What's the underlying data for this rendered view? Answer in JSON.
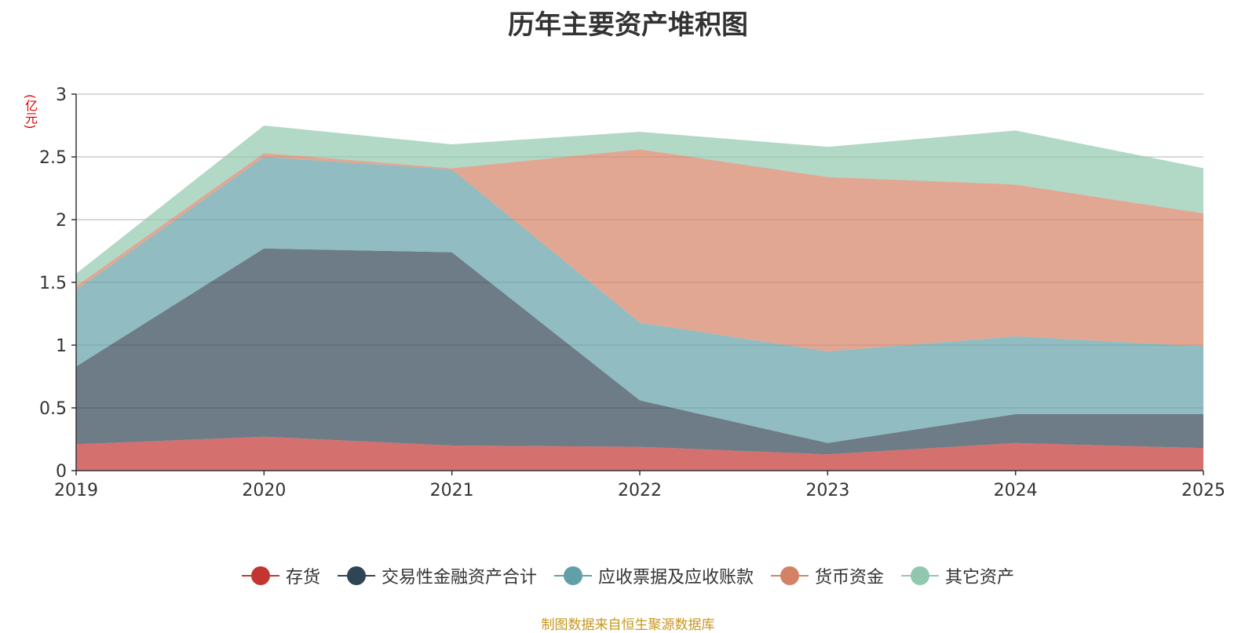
{
  "chart_data": {
    "type": "area",
    "stacked": true,
    "title": "历年主要资产堆积图",
    "ylabel": "(亿元)",
    "xlabel": "",
    "categories": [
      "2019",
      "2020",
      "2021",
      "2022",
      "2023",
      "2024",
      "2025"
    ],
    "ylim": [
      0,
      3
    ],
    "yticks": [
      0,
      0.5,
      1,
      1.5,
      2,
      2.5,
      3
    ],
    "grid": true,
    "legend_position": "bottom",
    "series": [
      {
        "name": "存货",
        "color": "#c23531",
        "values": [
          0.21,
          0.27,
          0.2,
          0.19,
          0.13,
          0.22,
          0.18
        ]
      },
      {
        "name": "交易性金融资产合计",
        "color": "#2f4554",
        "values": [
          0.62,
          1.5,
          1.54,
          0.37,
          0.09,
          0.23,
          0.27
        ]
      },
      {
        "name": "应收票据及应收账款",
        "color": "#61a0a8",
        "values": [
          0.61,
          0.73,
          0.66,
          0.62,
          0.73,
          0.62,
          0.54
        ]
      },
      {
        "name": "货币资金",
        "color": "#d48265",
        "values": [
          0.03,
          0.03,
          0.01,
          1.38,
          1.39,
          1.21,
          1.06
        ]
      },
      {
        "name": "其它资产",
        "color": "#91c7ae",
        "values": [
          0.1,
          0.22,
          0.19,
          0.14,
          0.24,
          0.43,
          0.36
        ]
      }
    ]
  },
  "source_note": "制图数据来自恒生聚源数据库"
}
